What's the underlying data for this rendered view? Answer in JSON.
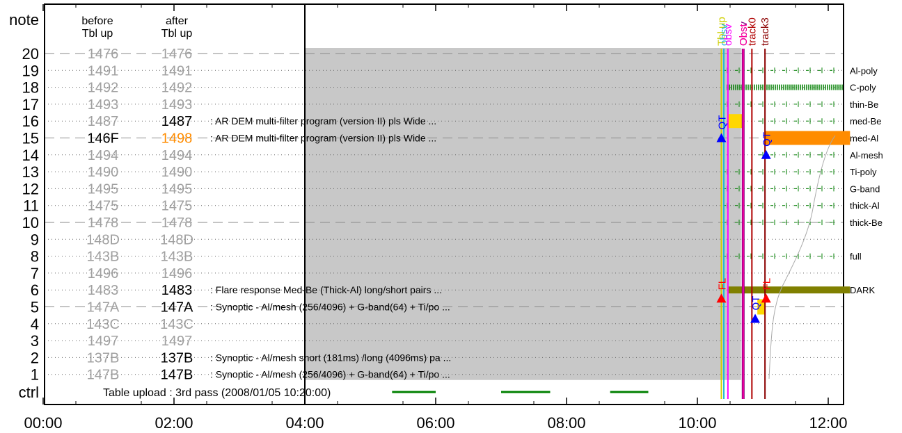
{
  "chart_data": {
    "type": "timeline",
    "header": {
      "note_label": "note",
      "col_before": [
        "before",
        "Tbl up"
      ],
      "col_after": [
        "after",
        "Tbl up"
      ]
    },
    "time_axis": {
      "range": [
        "00:00",
        "12:20"
      ],
      "ticks": [
        "00:00",
        "02:00",
        "04:00",
        "06:00",
        "08:00",
        "10:00",
        "12:00"
      ]
    },
    "rows": [
      {
        "note": "20",
        "before": "1476",
        "after": "1476",
        "after_highlight": "none",
        "desc": "",
        "filter": ""
      },
      {
        "note": "19",
        "before": "1491",
        "after": "1491",
        "after_highlight": "none",
        "desc": "",
        "filter": "Al-poly"
      },
      {
        "note": "18",
        "before": "1492",
        "after": "1492",
        "after_highlight": "none",
        "desc": "",
        "filter": "C-poly"
      },
      {
        "note": "17",
        "before": "1493",
        "after": "1493",
        "after_highlight": "none",
        "desc": "",
        "filter": "thin-Be"
      },
      {
        "note": "16",
        "before": "1487",
        "after": "1487",
        "after_highlight": "black",
        "desc": ": AR DEM multi-filter program (version II) pls Wide  ...",
        "filter": "med-Be"
      },
      {
        "note": "15",
        "before": "146F",
        "after": "1498",
        "after_highlight": "orange",
        "before_highlight": "black",
        "desc": ": AR DEM multi-filter program (version II) pls Wide  ...",
        "filter": "med-Al"
      },
      {
        "note": "14",
        "before": "1494",
        "after": "1494",
        "after_highlight": "none",
        "desc": "",
        "filter": "Al-mesh"
      },
      {
        "note": "13",
        "before": "1490",
        "after": "1490",
        "after_highlight": "none",
        "desc": "",
        "filter": "Ti-poly"
      },
      {
        "note": "12",
        "before": "1495",
        "after": "1495",
        "after_highlight": "none",
        "desc": "",
        "filter": "G-band"
      },
      {
        "note": "11",
        "before": "1475",
        "after": "1475",
        "after_highlight": "none",
        "desc": "",
        "filter": "thick-Al"
      },
      {
        "note": "10",
        "before": "1478",
        "after": "1478",
        "after_highlight": "none",
        "desc": "",
        "filter": "thick-Be"
      },
      {
        "note": "9",
        "before": "148D",
        "after": "148D",
        "after_highlight": "none",
        "desc": "",
        "filter": ""
      },
      {
        "note": "8",
        "before": "143B",
        "after": "143B",
        "after_highlight": "none",
        "desc": "",
        "filter": "full"
      },
      {
        "note": "7",
        "before": "1496",
        "after": "1496",
        "after_highlight": "none",
        "desc": "",
        "filter": ""
      },
      {
        "note": "6",
        "before": "1483",
        "after": "1483",
        "after_highlight": "black",
        "desc": ": Flare response Med-Be (Thick-Al) long/short pairs  ...",
        "filter": "DARK"
      },
      {
        "note": "5",
        "before": "147A",
        "after": "147A",
        "after_highlight": "black",
        "desc": ": Synoptic - Al/mesh (256/4096) + G-band(64) + Ti/po ...",
        "filter": ""
      },
      {
        "note": "4",
        "before": "143C",
        "after": "143C",
        "after_highlight": "none",
        "desc": "",
        "filter": ""
      },
      {
        "note": "3",
        "before": "1497",
        "after": "1497",
        "after_highlight": "none",
        "desc": "",
        "filter": ""
      },
      {
        "note": "2",
        "before": "137B",
        "after": "137B",
        "after_highlight": "black",
        "desc": ": Synoptic - Al/mesh short (181ms) /long (4096ms) pa ...",
        "filter": ""
      },
      {
        "note": "1",
        "before": "147B",
        "after": "147B",
        "after_highlight": "black",
        "desc": ": Synoptic - Al/mesh (256/4096) + G-band(64) + Ti/po ...",
        "filter": ""
      }
    ],
    "ctrl": {
      "label": "ctrl",
      "text": "Table upload : 3rd pass (2008/01/05 10:20:00)",
      "green_segments": [
        [
          "05:20",
          "06:00"
        ],
        [
          "07:00",
          "07:45"
        ],
        [
          "08:40",
          "09:15"
        ]
      ]
    },
    "gray_region": {
      "start": "04:00",
      "end": "10:40",
      "note_top": 20,
      "note_bottom": 1
    },
    "vertical_markers": [
      {
        "label": "Tbl up",
        "time": "10:22",
        "color": "#cfcf00"
      },
      {
        "label": "obsv",
        "time": "10:23",
        "color": "#20b8d8"
      },
      {
        "label": "obsv",
        "time": "10:28",
        "color": "#ff00ff"
      },
      {
        "label": "Obsv",
        "time": "10:42",
        "color": "#800080"
      },
      {
        "label": "Obst",
        "time": "10:42",
        "color": "#ff00a0"
      },
      {
        "label": "track0",
        "time": "10:50",
        "color": "#b00000"
      },
      {
        "label": "track3",
        "time": "11:02",
        "color": "#8b0000"
      }
    ],
    "event_markers": [
      {
        "label": "QT",
        "time": "10:22",
        "note": 15,
        "color": "#0000ff",
        "shape": "triangle-up"
      },
      {
        "label": "QT",
        "time": "11:03",
        "note": 14,
        "color": "#0000ff",
        "shape": "triangle-up"
      },
      {
        "label": "FL",
        "time": "10:22",
        "note": 5.5,
        "color": "#ff0000",
        "shape": "triangle-up"
      },
      {
        "label": "FL",
        "time": "11:03",
        "note": 5.5,
        "color": "#ff0000",
        "shape": "triangle-up"
      },
      {
        "label": "QT",
        "time": "10:53",
        "note": 4.3,
        "color": "#0000ff",
        "shape": "triangle-up"
      }
    ],
    "bars": [
      {
        "note": 16,
        "start": "10:28",
        "end": "10:43",
        "color": "#ffd700"
      },
      {
        "note": 15,
        "start": "11:02",
        "end": "12:20",
        "color": "#ff8c00"
      },
      {
        "note": 6,
        "start": "10:28",
        "end": "12:20",
        "color": "#808000"
      },
      {
        "note": 5,
        "start": "10:55",
        "end": "11:02",
        "color": "#ffd700"
      }
    ],
    "filter_tick_rows": [
      19,
      18,
      17,
      16,
      14,
      13,
      12,
      11,
      10,
      8
    ],
    "colors": {
      "gray_fill": "#c8c8c8",
      "grid_gray": "#909090",
      "id_gray": "#a0a0a0",
      "orange": "#ff8c00",
      "green": "#008000",
      "blue": "#0000ff",
      "red": "#ff0000"
    }
  }
}
